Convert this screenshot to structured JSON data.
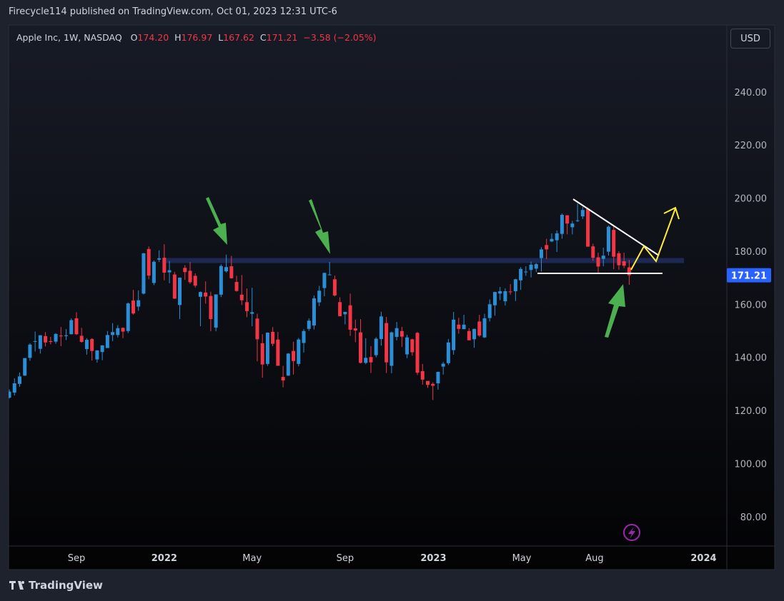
{
  "header": {
    "published": "Firecycle114 published on TradingView.com, Oct 01, 2023 12:31 UTC-6"
  },
  "legend": {
    "symbol": "Apple Inc, 1W, NASDAQ",
    "o_label": "O",
    "o": "174.20",
    "h_label": "H",
    "h": "176.97",
    "l_label": "L",
    "l": "167.62",
    "c_label": "C",
    "c": "171.21",
    "change": "−3.58 (−2.05%)"
  },
  "currency": "USD",
  "footer": {
    "brand": "TradingView"
  },
  "chart_data": {
    "type": "candlestick",
    "up_color": "#2a8fd6",
    "down_color": "#f23645",
    "open": [
      125.1,
      127.0,
      130.3,
      133.4,
      140.1,
      146.2,
      143.5,
      148.3,
      146.4,
      146.2,
      148.5,
      148.3,
      149.0,
      155.0,
      148.4,
      143.4,
      147.2,
      139.5,
      142.3,
      143.8,
      148.7,
      148.7,
      151.4,
      150.2,
      161.7,
      159.4,
      164.3,
      181.1,
      168.3,
      177.1,
      177.8,
      172.3,
      171.5,
      160.0,
      174.0,
      172.9,
      171.0,
      163.1,
      164.7,
      163.4,
      151.5,
      163.9,
      172.7,
      174.6,
      168.7,
      163.9,
      161.1,
      156.7,
      154.9,
      145.6,
      137.8,
      149.9,
      147.0,
      132.9,
      133.4,
      142.7,
      137.8,
      145.7,
      151.0,
      152.3,
      161.0,
      166.4,
      171.5,
      169.7,
      161.1,
      156.5,
      159.9,
      151.2,
      149.7,
      138.2,
      140.4,
      141.1,
      147.2,
      153.2,
      137.1,
      148.0,
      150.2,
      141.4,
      147.1,
      149.5,
      135.1,
      131.4,
      130.3,
      130.5,
      136.8,
      138.1,
      143.0,
      152.6,
      150.9,
      150.2,
      147.1,
      153.8,
      147.8,
      155.1,
      159.9,
      164.3,
      161.4,
      165.1,
      165.2,
      169.3,
      172.5,
      173.2,
      173.7,
      177.7,
      182.6,
      183.96,
      184.4,
      186.8,
      193.8,
      189.3,
      191.9,
      193.4,
      196.2,
      182.1,
      177.97,
      177.4,
      180.1,
      188.3,
      179.5,
      176.5,
      174.2
    ],
    "high": [
      128.2,
      132.4,
      134.6,
      140.0,
      145.6,
      150.0,
      148.7,
      149.8,
      148.0,
      149.4,
      151.7,
      150.9,
      155.0,
      157.3,
      151.4,
      147.5,
      147.5,
      143.0,
      144.9,
      150.2,
      153.2,
      152.4,
      151.6,
      161.0,
      165.7,
      165.5,
      179.6,
      182.1,
      176.8,
      180.6,
      182.9,
      176.6,
      172.5,
      170.4,
      175.0,
      176.2,
      171.9,
      165.1,
      168.9,
      165.0,
      164.0,
      175.3,
      179.0,
      178.5,
      171.0,
      171.3,
      166.2,
      166.5,
      156.7,
      149.0,
      149.7,
      151.7,
      149.9,
      137.1,
      141.9,
      146.2,
      147.6,
      150.9,
      155.0,
      163.6,
      167.2,
      172.2,
      176.2,
      171.1,
      162.9,
      157.4,
      164.3,
      154.5,
      154.7,
      147.5,
      144.5,
      147.9,
      157.5,
      155.5,
      150.0,
      153.6,
      151.8,
      148.8,
      147.3,
      149.9,
      137.8,
      131.4,
      130.9,
      134.9,
      138.6,
      147.2,
      157.4,
      155.2,
      156.3,
      151.3,
      151.1,
      156.3,
      156.7,
      162.1,
      165.0,
      166.8,
      166.3,
      167.9,
      169.9,
      174.3,
      174.6,
      176.4,
      175.8,
      181.8,
      184.95,
      186.99,
      188.1,
      194.5,
      193.9,
      191.7,
      198.2,
      197.0,
      196.7,
      183.1,
      179.7,
      181.6,
      189.98,
      189.9,
      180.3,
      179.7,
      176.97
    ],
    "low": [
      124.8,
      125.9,
      129.2,
      133.3,
      139.0,
      142.5,
      141.7,
      144.4,
      145.2,
      145.4,
      144.5,
      146.8,
      148.9,
      148.7,
      145.8,
      141.3,
      139.1,
      138.3,
      139.2,
      143.8,
      146.4,
      147.8,
      147.5,
      149.4,
      156.4,
      157.8,
      164.0,
      169.7,
      167.5,
      176.2,
      169.3,
      168.2,
      162.3,
      154.7,
      169.5,
      168.0,
      166.6,
      152.0,
      160.5,
      150.1,
      150.1,
      163.0,
      172.2,
      169.9,
      165.0,
      160.0,
      155.4,
      152.0,
      138.8,
      132.6,
      137.1,
      144.5,
      137.1,
      129.0,
      133.3,
      133.8,
      136.9,
      142.1,
      150.3,
      150.8,
      159.6,
      163.3,
      171.3,
      163.2,
      155.8,
      152.7,
      148.4,
      146.0,
      138.0,
      137.7,
      134.4,
      140.3,
      144.7,
      134.4,
      134.3,
      146.7,
      144.2,
      140.0,
      140.9,
      133.7,
      130.0,
      128.8,
      124.2,
      128.1,
      133.8,
      137.4,
      141.3,
      149.2,
      150.9,
      146.7,
      143.9,
      148.0,
      147.6,
      153.8,
      155.98,
      161.8,
      159.8,
      163.9,
      161.5,
      165.7,
      171.0,
      170.4,
      172.4,
      172.6,
      177.3,
      183.7,
      180.0,
      185.0,
      186.6,
      186.6,
      191.3,
      192.4,
      181.9,
      176.6,
      171.96,
      174.6,
      178.6,
      173.5,
      173.3,
      173.9,
      167.62
    ],
    "close": [
      127.4,
      130.5,
      133.1,
      140.0,
      145.1,
      146.4,
      148.6,
      145.9,
      146.1,
      149.1,
      148.2,
      148.6,
      154.3,
      149.0,
      146.1,
      146.9,
      142.7,
      142.9,
      144.8,
      148.7,
      149.8,
      151.3,
      150.0,
      160.6,
      156.8,
      161.8,
      179.5,
      171.1,
      176.3,
      177.6,
      172.2,
      173.1,
      162.4,
      170.3,
      172.4,
      168.6,
      167.3,
      164.9,
      163.2,
      154.7,
      164.0,
      174.7,
      174.3,
      170.1,
      165.3,
      161.8,
      157.7,
      157.3,
      147.1,
      137.6,
      149.6,
      145.4,
      137.1,
      131.6,
      141.7,
      138.9,
      147.0,
      150.2,
      154.1,
      162.5,
      165.4,
      172.1,
      171.5,
      163.6,
      155.8,
      157.4,
      150.7,
      150.4,
      138.2,
      140.1,
      138.4,
      147.3,
      155.7,
      138.4,
      149.7,
      151.3,
      148.1,
      147.8,
      142.2,
      134.5,
      131.9,
      129.9,
      129.6,
      134.8,
      137.9,
      145.9,
      154.5,
      151.0,
      152.6,
      146.7,
      151.0,
      148.5,
      155.0,
      160.3,
      164.9,
      165.2,
      165.2,
      165.0,
      169.7,
      173.6,
      172.6,
      175.2,
      175.4,
      180.95,
      180.96,
      184.9,
      187.0,
      193.97,
      190.7,
      190.7,
      191.9,
      195.8,
      182.0,
      177.8,
      174.5,
      178.6,
      189.5,
      178.2,
      175.0,
      174.8,
      171.21
    ],
    "ylim": [
      69.2,
      265.5
    ],
    "yticks": [
      {
        "value": 80,
        "label": "80.00"
      },
      {
        "value": 100,
        "label": "100.00"
      },
      {
        "value": 120,
        "label": "120.00"
      },
      {
        "value": 140,
        "label": "140.00"
      },
      {
        "value": 160,
        "label": "160.00"
      },
      {
        "value": 180,
        "label": "180.00"
      },
      {
        "value": 200,
        "label": "200.00"
      },
      {
        "value": 220,
        "label": "220.00"
      },
      {
        "value": 240,
        "label": "240.00"
      }
    ],
    "xlim": [
      -0.14,
      138.9
    ],
    "xticks": [
      {
        "value": 13.0,
        "label": "Sep"
      },
      {
        "value": 30.0,
        "label": "2022"
      },
      {
        "value": 47.0,
        "label": "May"
      },
      {
        "value": 65.0,
        "label": "Sep"
      },
      {
        "value": 82.1,
        "label": "2023"
      },
      {
        "value": 99.2,
        "label": "May"
      },
      {
        "value": 113.3,
        "label": "Aug"
      },
      {
        "value": 134.4,
        "label": "2024"
      }
    ],
    "last_price": 171.21,
    "resistance_zone": [
      175.8,
      177.7
    ]
  }
}
